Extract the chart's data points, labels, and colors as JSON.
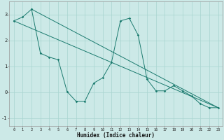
{
  "xlabel": "Humidex (Indice chaleur)",
  "bg_color": "#cce9e7",
  "line_color": "#1a7a6e",
  "grid_color": "#a8d4d0",
  "xlim": [
    -0.5,
    23.5
  ],
  "ylim": [
    -1.3,
    3.5
  ],
  "xticks": [
    0,
    1,
    2,
    3,
    4,
    5,
    6,
    7,
    8,
    9,
    10,
    11,
    12,
    13,
    14,
    15,
    16,
    17,
    18,
    19,
    20,
    21,
    22,
    23
  ],
  "yticks": [
    -1,
    0,
    1,
    2,
    3
  ],
  "line1_x": [
    0,
    1,
    2
  ],
  "line1_y": [
    2.75,
    2.9,
    3.2
  ],
  "line2_x": [
    2,
    3,
    4,
    5,
    6,
    7,
    8,
    9,
    10,
    11,
    12,
    13,
    14,
    15,
    16,
    17,
    18,
    19,
    20,
    21,
    22,
    23
  ],
  "line2_y": [
    3.2,
    1.5,
    1.35,
    1.25,
    0.02,
    -0.35,
    -0.35,
    0.35,
    0.55,
    1.15,
    2.75,
    2.85,
    2.2,
    0.5,
    0.05,
    0.05,
    0.25,
    0.05,
    -0.15,
    -0.45,
    -0.6,
    -0.6
  ],
  "regline1_x": [
    0,
    23
  ],
  "regline1_y": [
    2.75,
    -0.6
  ],
  "regline2_x": [
    2,
    23
  ],
  "regline2_y": [
    3.2,
    -0.6
  ]
}
